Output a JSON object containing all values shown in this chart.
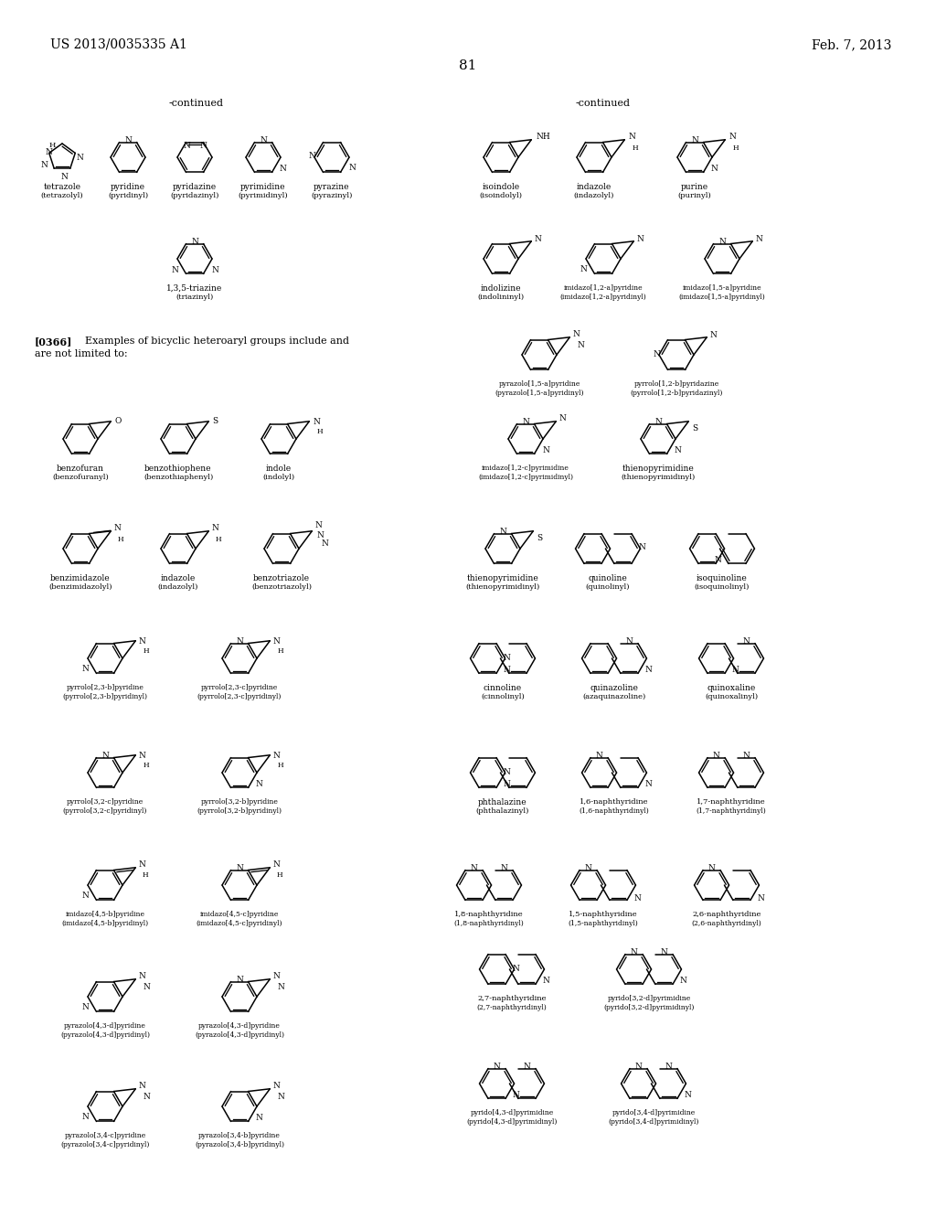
{
  "page_header_left": "US 2013/0035335 A1",
  "page_header_right": "Feb. 7, 2013",
  "page_number": "81",
  "background_color": "#ffffff",
  "paragraph_tag": "[0366]",
  "paragraph_text": "Examples of bicyclic heteroaryl groups include and are not limited to:"
}
